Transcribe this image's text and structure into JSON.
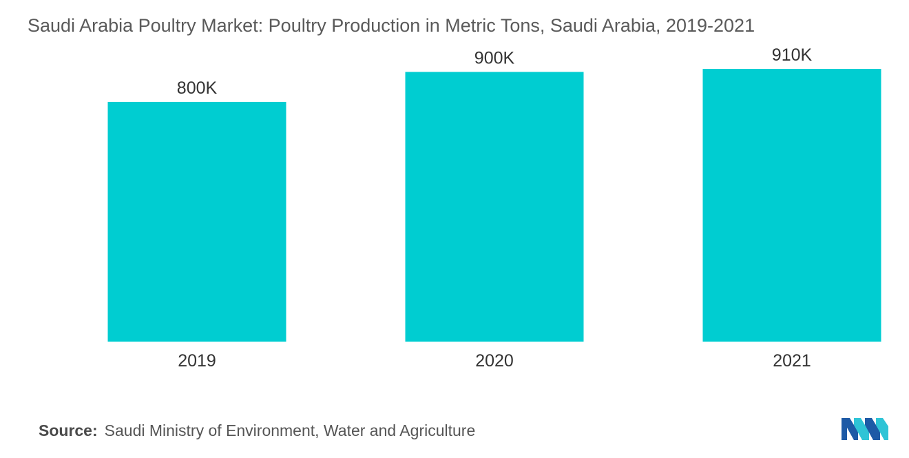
{
  "title": "Saudi Arabia Poultry Market: Poultry Production in Metric Tons, Saudi Arabia, 2019-2021",
  "source": {
    "label": "Source:",
    "text": "Saudi Ministry of Environment, Water and Agriculture"
  },
  "logo": {
    "icon": "mordor-intelligence-logo-icon",
    "colors": [
      "#1d5aa6",
      "#2ec4d6"
    ]
  },
  "colors": {
    "bar": "#00cdd1",
    "text": "#5a5a5a"
  },
  "chart_data": {
    "type": "bar",
    "categories": [
      "2019",
      "2020",
      "2021"
    ],
    "values": [
      800000,
      900000,
      910000
    ],
    "data_labels": [
      "800K",
      "900K",
      "910K"
    ],
    "xlabel": "",
    "ylabel": "",
    "ylim": [
      0,
      1140000
    ],
    "grid": false,
    "legend": "none"
  }
}
